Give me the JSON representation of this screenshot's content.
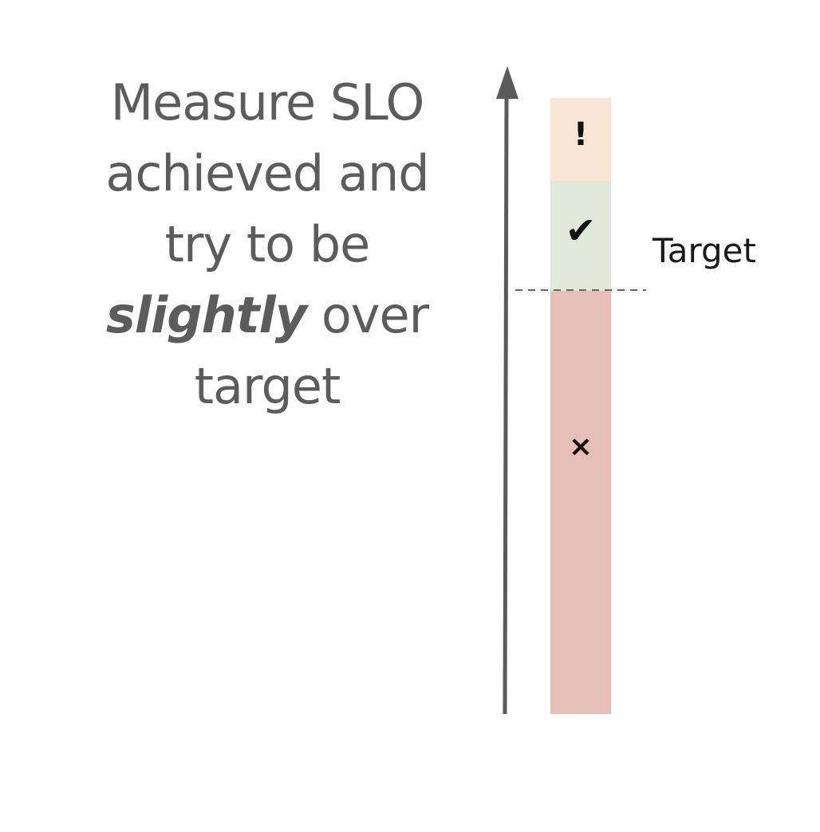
{
  "headline": {
    "line1": "Measure SLO",
    "line2": "achieved and",
    "line3": "try to be",
    "line4_emphasis": "slightly",
    "line4_rest": " over",
    "line5": "target"
  },
  "diagram": {
    "target_label": "Target",
    "zones": [
      {
        "name": "over-target",
        "marker": "!",
        "color": "#f9e5d6"
      },
      {
        "name": "slightly-over-target",
        "marker": "✔",
        "color": "#dfe8d9"
      },
      {
        "name": "below-target",
        "marker": "×",
        "color": "#e6c0b8"
      }
    ],
    "colors": {
      "axis": "#5a5a5a",
      "target_line": "#666666",
      "text": "#5c5c5c"
    }
  }
}
